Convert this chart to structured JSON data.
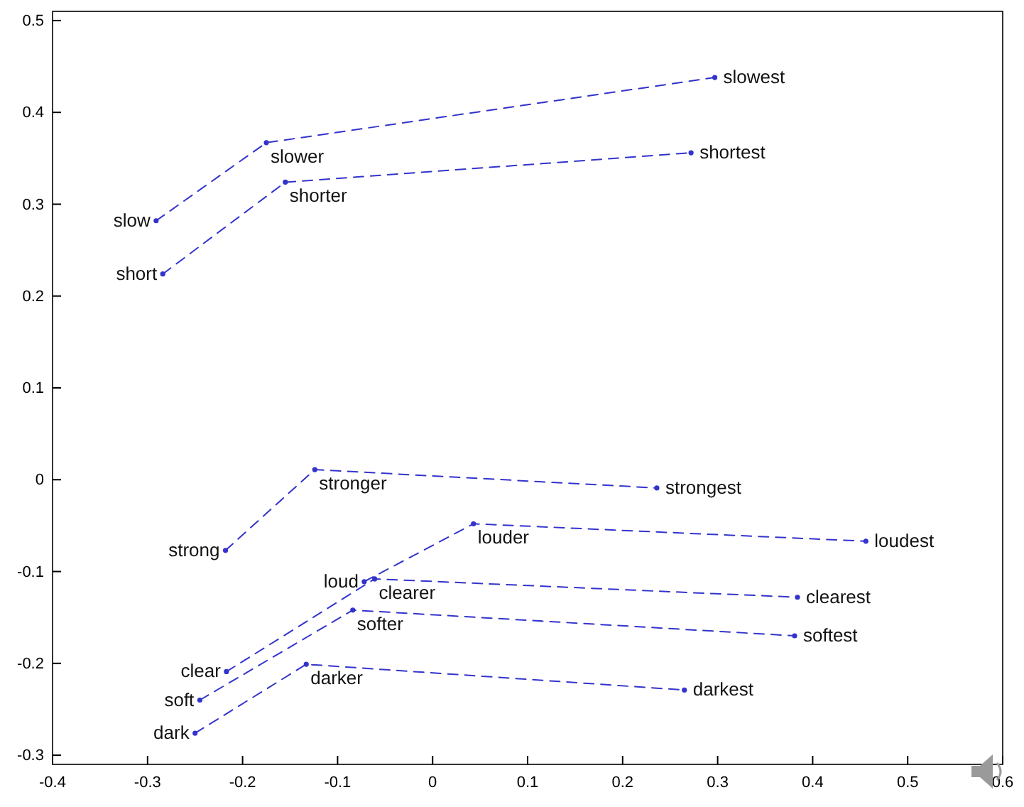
{
  "chart_data": {
    "type": "line",
    "marker": "circle",
    "line_style": "dashed",
    "grid": false,
    "xlim": [
      -0.4,
      0.6
    ],
    "xticks": [
      -0.4,
      -0.3,
      -0.2,
      -0.1,
      0,
      0.1,
      0.2,
      0.3,
      0.4,
      0.5,
      0.6
    ],
    "ylim": [
      -0.31,
      0.51
    ],
    "yticks": [
      -0.3,
      -0.2,
      -0.1,
      0,
      0.1,
      0.2,
      0.3,
      0.4,
      0.5
    ],
    "series": [
      {
        "color": "#3333cc",
        "x": [
          -0.291,
          -0.175,
          0.297
        ],
        "values": [
          0.282,
          0.367,
          0.438
        ],
        "value_labels": [
          "slow",
          "slower",
          "slowest"
        ]
      },
      {
        "color": "#3333cc",
        "x": [
          -0.284,
          -0.155,
          0.272
        ],
        "values": [
          0.224,
          0.324,
          0.356
        ],
        "value_labels": [
          "short",
          "shorter",
          "shortest"
        ]
      },
      {
        "color": "#3333cc",
        "x": [
          -0.218,
          -0.124,
          0.236
        ],
        "values": [
          -0.077,
          0.011,
          -0.009
        ],
        "value_labels": [
          "strong",
          "stronger",
          "strongest"
        ]
      },
      {
        "color": "#3333cc",
        "x": [
          -0.072,
          0.043,
          0.456
        ],
        "values": [
          -0.111,
          -0.048,
          -0.067
        ],
        "value_labels": [
          "loud",
          "louder",
          "loudest"
        ]
      },
      {
        "color": "#3333cc",
        "x": [
          -0.217,
          -0.061,
          0.384
        ],
        "values": [
          -0.209,
          -0.108,
          -0.128
        ],
        "value_labels": [
          "clear",
          "clearer",
          "clearest"
        ]
      },
      {
        "color": "#3333cc",
        "x": [
          -0.245,
          -0.084,
          0.381
        ],
        "values": [
          -0.24,
          -0.142,
          -0.17
        ],
        "value_labels": [
          "soft",
          "softer",
          "softest"
        ]
      },
      {
        "color": "#3333cc",
        "x": [
          -0.25,
          -0.133,
          0.265
        ],
        "values": [
          -0.276,
          -0.201,
          -0.229
        ],
        "value_labels": [
          "dark",
          "darker",
          "darkest"
        ]
      }
    ]
  }
}
